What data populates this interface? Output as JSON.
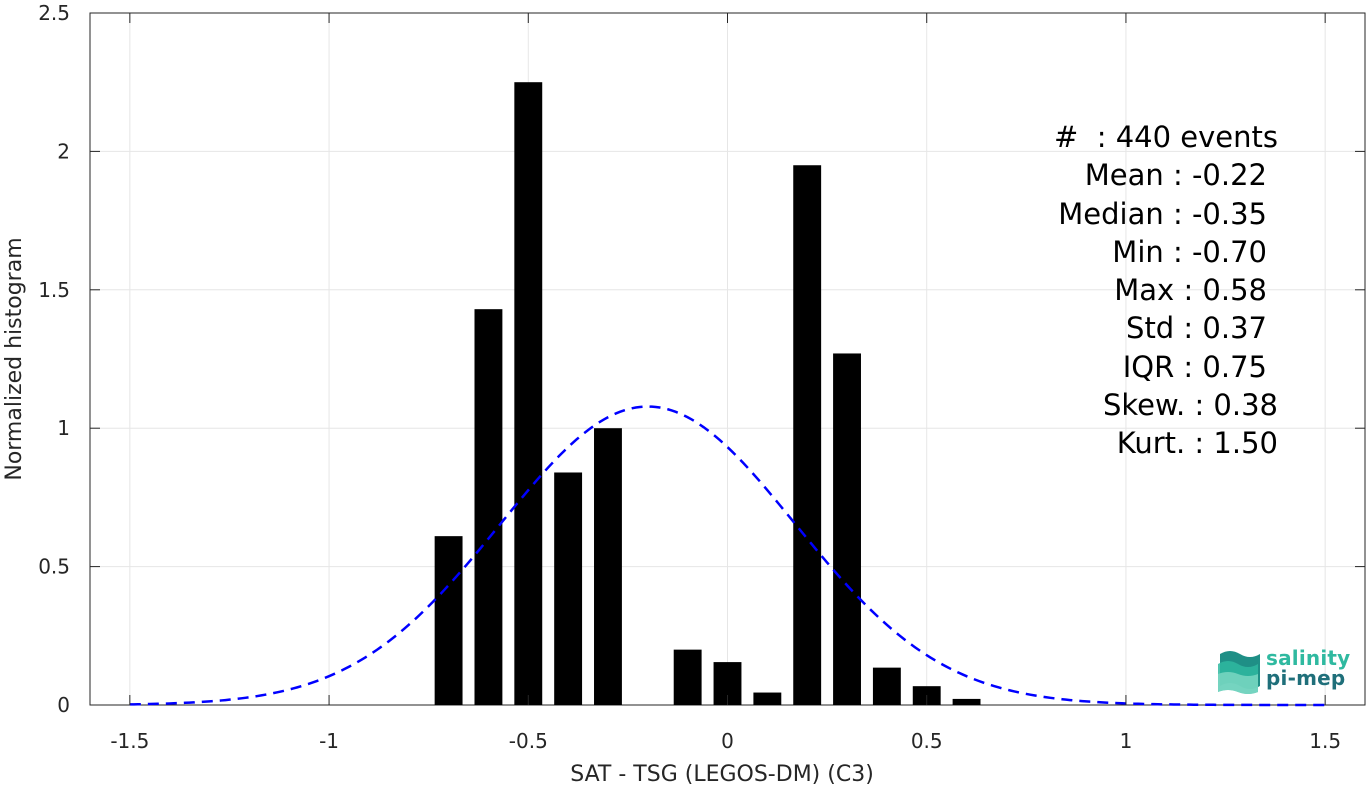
{
  "chart_data": {
    "type": "bar",
    "xlabel": "SAT - TSG (LEGOS-DM) (C3)",
    "ylabel": "Normalized histogram",
    "xlim": [
      -1.6,
      1.6
    ],
    "ylim": [
      0,
      2.5
    ],
    "xticks": [
      -1.5,
      -1,
      -0.5,
      0,
      0.5,
      1,
      1.5
    ],
    "xtick_labels": [
      "-1.5",
      "-1",
      "-0.5",
      "0",
      "0.5",
      "1",
      "1.5"
    ],
    "yticks": [
      0,
      0.5,
      1,
      1.5,
      2,
      2.5
    ],
    "ytick_labels": [
      "0",
      "0.5",
      "1",
      "1.5",
      "2",
      "2.5"
    ],
    "grid": true,
    "bar_width": 0.07,
    "bars": [
      {
        "x": -0.7,
        "value": 0.61
      },
      {
        "x": -0.6,
        "value": 1.43
      },
      {
        "x": -0.5,
        "value": 2.25
      },
      {
        "x": -0.4,
        "value": 0.84
      },
      {
        "x": -0.3,
        "value": 1.0
      },
      {
        "x": -0.1,
        "value": 0.2
      },
      {
        "x": 0.0,
        "value": 0.155
      },
      {
        "x": 0.1,
        "value": 0.045
      },
      {
        "x": 0.2,
        "value": 1.95
      },
      {
        "x": 0.3,
        "value": 1.27
      },
      {
        "x": 0.4,
        "value": 0.135
      },
      {
        "x": 0.5,
        "value": 0.068
      },
      {
        "x": 0.6,
        "value": 0.022
      }
    ],
    "bar_color": "#000000",
    "fit_curve": {
      "style": "dashed",
      "color": "#0000ff",
      "distribution": "gaussian",
      "mean": -0.2,
      "std": 0.37
    },
    "stats": [
      {
        "label": "#  : 440 events",
        "align": "right"
      },
      {
        "label": "Mean : -0.22"
      },
      {
        "label": "Median : -0.35"
      },
      {
        "label": "Min : -0.70"
      },
      {
        "label": "Max : 0.58"
      },
      {
        "label": "Std : 0.37"
      },
      {
        "label": "IQR : 0.75"
      },
      {
        "label": "Skew. : 0.38"
      },
      {
        "label": "Kurt. : 1.50"
      }
    ]
  },
  "logo": {
    "line1": "salinity",
    "line2": "pi-mep",
    "colors": {
      "light": "#2fb9a0",
      "dark": "#1f6f7a"
    }
  }
}
